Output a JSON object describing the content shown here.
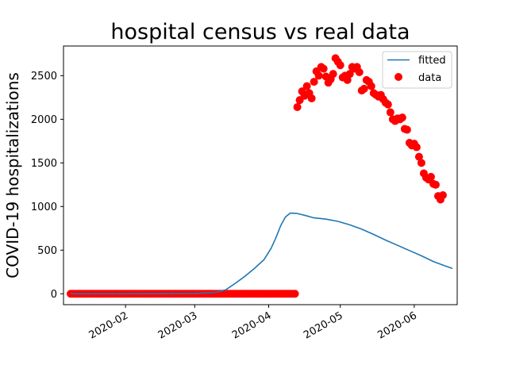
{
  "chart_data": {
    "type": "line",
    "title": "hospital census vs real data",
    "xlabel": "",
    "ylabel": "COVID-19 hospitalizations",
    "x_type": "date",
    "xlim": [
      "2020-01-06",
      "2020-06-19"
    ],
    "ylim": [
      -125,
      2840
    ],
    "x_ticks": [
      "2020-02-01",
      "2020-03-01",
      "2020-04-01",
      "2020-05-01",
      "2020-06-01"
    ],
    "x_tick_labels": [
      "2020-02",
      "2020-03",
      "2020-04",
      "2020-05",
      "2020-06"
    ],
    "y_ticks": [
      0,
      500,
      1000,
      1500,
      2000,
      2500
    ],
    "y_tick_labels": [
      "0",
      "500",
      "1000",
      "1500",
      "2000",
      "2500"
    ],
    "grid": false,
    "legend_position": "top-right",
    "colors": {
      "fitted": "#1f77b4",
      "data": "#ff0000"
    },
    "series": [
      {
        "name": "fitted",
        "type": "line",
        "points": [
          [
            "2020-01-09",
            0
          ],
          [
            "2020-02-01",
            0
          ],
          [
            "2020-03-01",
            3
          ],
          [
            "2020-03-10",
            18
          ],
          [
            "2020-03-14",
            45
          ],
          [
            "2020-03-18",
            120
          ],
          [
            "2020-03-22",
            200
          ],
          [
            "2020-03-26",
            290
          ],
          [
            "2020-03-30",
            390
          ],
          [
            "2020-04-02",
            520
          ],
          [
            "2020-04-04",
            640
          ],
          [
            "2020-04-06",
            780
          ],
          [
            "2020-04-08",
            880
          ],
          [
            "2020-04-10",
            925
          ],
          [
            "2020-04-13",
            920
          ],
          [
            "2020-04-16",
            900
          ],
          [
            "2020-04-20",
            870
          ],
          [
            "2020-04-25",
            855
          ],
          [
            "2020-04-30",
            830
          ],
          [
            "2020-05-05",
            790
          ],
          [
            "2020-05-10",
            740
          ],
          [
            "2020-05-15",
            680
          ],
          [
            "2020-05-20",
            615
          ],
          [
            "2020-05-25",
            555
          ],
          [
            "2020-05-30",
            495
          ],
          [
            "2020-06-04",
            435
          ],
          [
            "2020-06-09",
            370
          ],
          [
            "2020-06-14",
            318
          ],
          [
            "2020-06-17",
            290
          ]
        ]
      },
      {
        "name": "data",
        "type": "scatter",
        "zero_range": [
          "2020-01-09",
          "2020-04-12"
        ],
        "points": [
          [
            "2020-04-13",
            2140
          ],
          [
            "2020-04-14",
            2220
          ],
          [
            "2020-04-15",
            2320
          ],
          [
            "2020-04-16",
            2270
          ],
          [
            "2020-04-17",
            2380
          ],
          [
            "2020-04-18",
            2300
          ],
          [
            "2020-04-19",
            2240
          ],
          [
            "2020-04-20",
            2430
          ],
          [
            "2020-04-21",
            2550
          ],
          [
            "2020-04-22",
            2500
          ],
          [
            "2020-04-23",
            2600
          ],
          [
            "2020-04-24",
            2580
          ],
          [
            "2020-04-25",
            2490
          ],
          [
            "2020-04-26",
            2420
          ],
          [
            "2020-04-27",
            2460
          ],
          [
            "2020-04-28",
            2520
          ],
          [
            "2020-04-29",
            2700
          ],
          [
            "2020-04-30",
            2660
          ],
          [
            "2020-05-01",
            2620
          ],
          [
            "2020-05-02",
            2480
          ],
          [
            "2020-05-03",
            2500
          ],
          [
            "2020-05-04",
            2450
          ],
          [
            "2020-05-05",
            2520
          ],
          [
            "2020-05-06",
            2600
          ],
          [
            "2020-05-07",
            2580
          ],
          [
            "2020-05-08",
            2600
          ],
          [
            "2020-05-09",
            2540
          ],
          [
            "2020-05-10",
            2330
          ],
          [
            "2020-05-11",
            2350
          ],
          [
            "2020-05-12",
            2450
          ],
          [
            "2020-05-13",
            2430
          ],
          [
            "2020-05-14",
            2380
          ],
          [
            "2020-05-15",
            2300
          ],
          [
            "2020-05-16",
            2280
          ],
          [
            "2020-05-17",
            2260
          ],
          [
            "2020-05-18",
            2280
          ],
          [
            "2020-05-19",
            2230
          ],
          [
            "2020-05-20",
            2190
          ],
          [
            "2020-05-21",
            2170
          ],
          [
            "2020-05-22",
            2080
          ],
          [
            "2020-05-23",
            2000
          ],
          [
            "2020-05-24",
            1980
          ],
          [
            "2020-05-25",
            2010
          ],
          [
            "2020-05-26",
            2000
          ],
          [
            "2020-05-27",
            2020
          ],
          [
            "2020-05-28",
            1890
          ],
          [
            "2020-05-29",
            1880
          ],
          [
            "2020-05-30",
            1730
          ],
          [
            "2020-05-31",
            1700
          ],
          [
            "2020-06-01",
            1720
          ],
          [
            "2020-06-02",
            1680
          ],
          [
            "2020-06-03",
            1570
          ],
          [
            "2020-06-04",
            1500
          ],
          [
            "2020-06-05",
            1380
          ],
          [
            "2020-06-06",
            1330
          ],
          [
            "2020-06-07",
            1310
          ],
          [
            "2020-06-08",
            1340
          ],
          [
            "2020-06-09",
            1260
          ],
          [
            "2020-06-10",
            1250
          ],
          [
            "2020-06-11",
            1120
          ],
          [
            "2020-06-12",
            1080
          ],
          [
            "2020-06-13",
            1130
          ]
        ]
      }
    ]
  }
}
